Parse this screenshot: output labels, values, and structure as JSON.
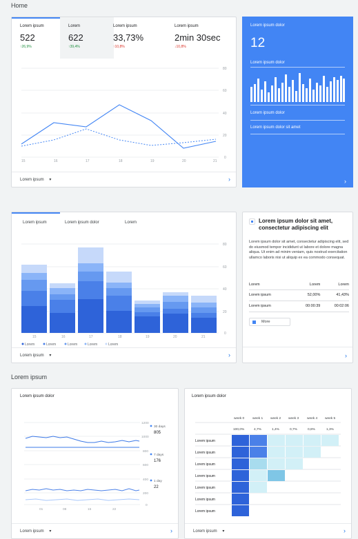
{
  "page": {
    "title": "Home",
    "section2_title": "Lorem ipsum"
  },
  "overview": {
    "metrics": [
      {
        "label": "Lorem ipsum",
        "value": "522",
        "change": "↑26,9%",
        "dir": "up"
      },
      {
        "label": "Lorem",
        "value": "622",
        "change": "↑39,4%",
        "dir": "up"
      },
      {
        "label": "Lorem ipsum",
        "value": "33,73%",
        "change": "↑10,8%",
        "dir": "down"
      },
      {
        "label": "Lorem ipsum",
        "value": "2min 30sec",
        "change": "↓10,8%",
        "dir": "down"
      }
    ],
    "yticks": [
      "80",
      "60",
      "40",
      "20",
      "0"
    ],
    "xticks": [
      "15",
      "16",
      "17",
      "18",
      "19",
      "20",
      "21"
    ],
    "footer_dropdown": "Lorem ipsum",
    "footer_chevron": "›"
  },
  "realtime": {
    "title": "Lorem ipsum dolor",
    "value": "12",
    "subtitle": "Lorem ipsum dolor",
    "label1": "Lorem ipsum dolor",
    "label2": "Lorem ipsum dolor sit amet",
    "chevron": "›"
  },
  "traffic": {
    "tabs": [
      "Lorem ipsum",
      "Lorem ipsum dolor",
      "Lorem"
    ],
    "yticks": [
      "80",
      "60",
      "40",
      "20",
      "0"
    ],
    "xticks": [
      "15",
      "16",
      "17",
      "18",
      "19",
      "20",
      "21"
    ],
    "legend": [
      "Lorem",
      "Lorem",
      "Lorem",
      "Lorem",
      "Lorem"
    ],
    "footer_dropdown": "Lorem ipsum",
    "footer_chevron": "›"
  },
  "insight": {
    "title": "Lorem ipsum dolor sit amet, consectetur adipiscing elit",
    "body": "Lorem ipsum dolor sit amet, consectetur adipiscing elit, sed do eiusmod tempor incididunt ut labore et dolore magna aliqua. Ut enim ad minim veniam, quis nostrud exercitation ullamco laboris nisi ut aliquip ex ea commodo consequat.",
    "headers": [
      "Lorem",
      "Lorem",
      "Lorem"
    ],
    "rows": [
      {
        "label": "Lorem ipsum",
        "a": "52,00%",
        "b": "41,43%"
      },
      {
        "label": "Lorem ipsum",
        "a": "00:00:39",
        "b": "00:02:06"
      }
    ],
    "more_label": "More",
    "chevron": "›"
  },
  "active_users": {
    "title": "Lorem ipsum dolor",
    "yticks": [
      "1200",
      "1000",
      "800",
      "600",
      "400",
      "200",
      "0"
    ],
    "xticks": [
      "01",
      "08",
      "15",
      "22"
    ],
    "legend": [
      {
        "label": "30 days",
        "value": "805"
      },
      {
        "label": "7 days",
        "value": "176"
      },
      {
        "label": "1 day",
        "value": "22"
      }
    ],
    "footer_dropdown": "Lorem ipsum",
    "footer_chevron": "›"
  },
  "cohort": {
    "title": "Lorem ipsum dolor",
    "headers": [
      "week 0",
      "week 1",
      "week 2",
      "week 3",
      "week 4",
      "week 5"
    ],
    "header_values": [
      "100,0%",
      "4,7%",
      "1,4%",
      "0,7%",
      "0,8%",
      "1,3%"
    ],
    "row_labels": [
      "Lorem ipsum",
      "Lorem ipsum",
      "Lorem ipsum",
      "Lorem ipsum",
      "Lorem ipsum",
      "Lorem ipsum",
      "Lorem ipsum"
    ],
    "footer_dropdown": "Lorem ipsum",
    "footer_chevron": "›"
  },
  "colors": {
    "accent": "#4285f4",
    "link": "#1a73e8",
    "up": "#1e8e3e",
    "down": "#d93025"
  }
}
